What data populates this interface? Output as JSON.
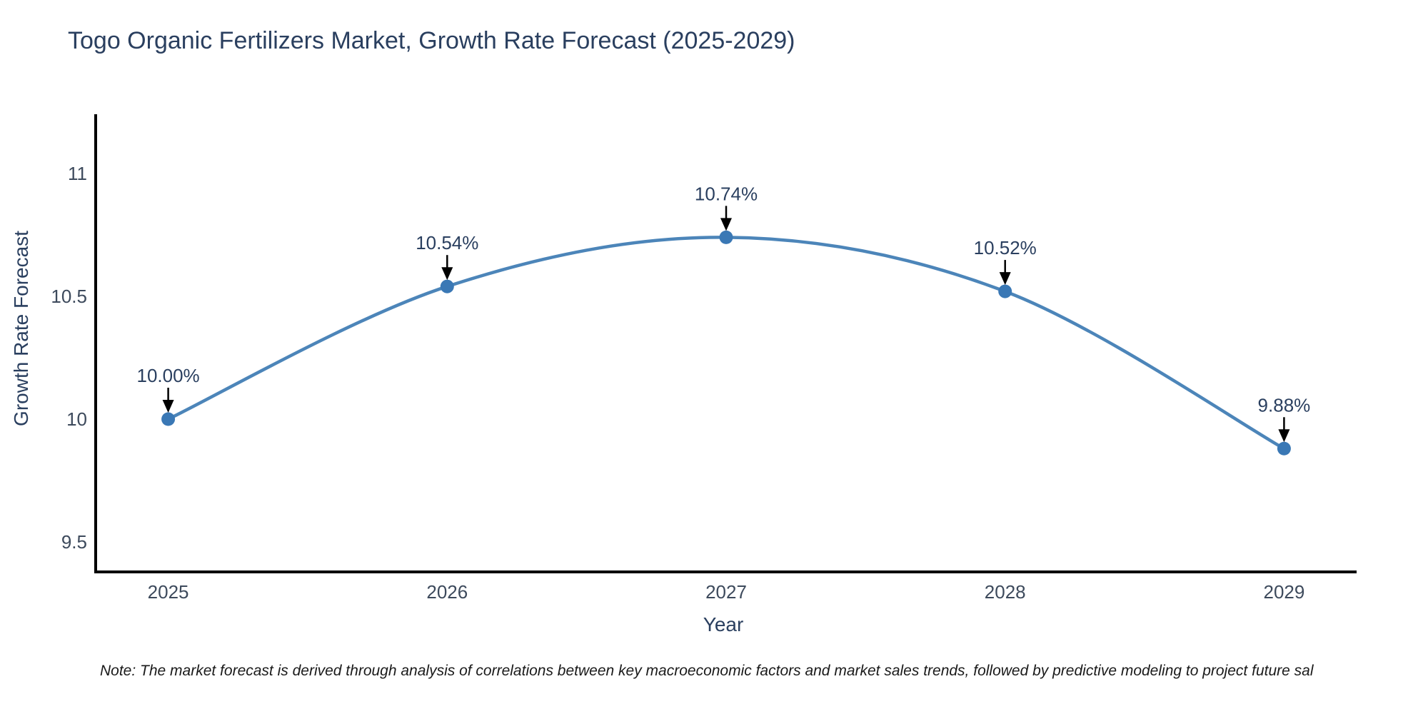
{
  "title": "Togo Organic Fertilizers Market, Growth Rate Forecast (2025-2029)",
  "note": "Note: The market forecast is derived through analysis of correlations between key macroeconomic factors and market sales trends, followed by predictive modeling to project future sal",
  "colors": {
    "background": "#ffffff",
    "title": "#2a3f5f",
    "axis_line": "#000000",
    "tick_label": "#3d4a5c",
    "axis_title": "#2a3f5f",
    "line": "#4c85b9",
    "marker": "#3a78b5",
    "annotation_text": "#2a3f5f",
    "annotation_arrow": "#000000",
    "note_text": "#1a1a1a"
  },
  "chart_data": {
    "type": "line",
    "title": "Togo Organic Fertilizers Market, Growth Rate Forecast (2025-2029)",
    "xlabel": "Year",
    "ylabel": "Growth Rate Forecast",
    "x": [
      2025,
      2026,
      2027,
      2028,
      2029
    ],
    "values": [
      10.0,
      10.54,
      10.74,
      10.52,
      9.88
    ],
    "point_labels": [
      "10.00%",
      "10.54%",
      "10.74%",
      "10.52%",
      "9.88%"
    ],
    "xticks": [
      2025,
      2026,
      2027,
      2028,
      2029
    ],
    "yticks": [
      9.5,
      10,
      10.5,
      11
    ],
    "xlim": [
      2024.74,
      2029.26
    ],
    "ylim": [
      9.378,
      11.241
    ],
    "line_shape": "spline",
    "markers": true,
    "grid": false,
    "legend_visible": false,
    "annotations_with_arrows": true
  }
}
